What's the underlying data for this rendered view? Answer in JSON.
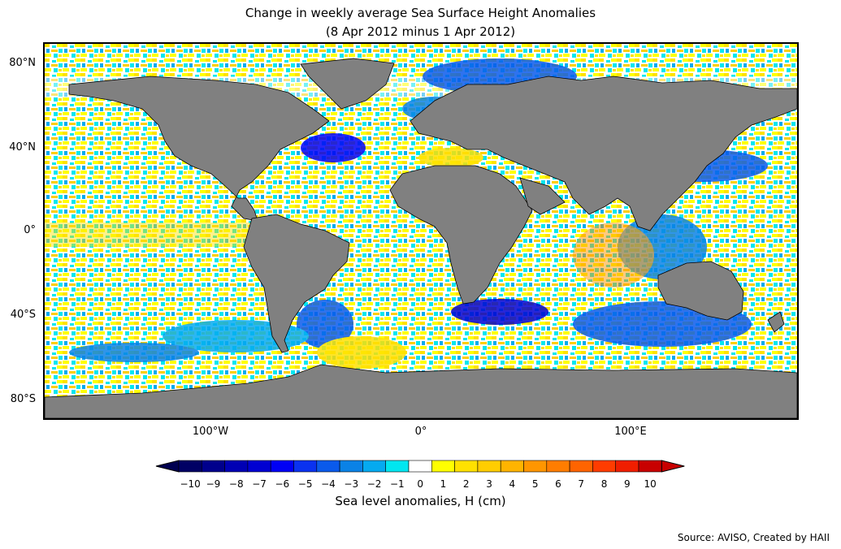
{
  "title": {
    "line1": "Change in weekly average Sea Surface Height Anomalies",
    "line2": "(8 Apr 2012 minus 1 Apr 2012)"
  },
  "map": {
    "land_color": "#808080",
    "coast_color": "#000000",
    "lat_labels": [
      "80°N",
      "40°N",
      "0°",
      "40°S",
      "80°S"
    ],
    "lon_labels": [
      "100°W",
      "0°",
      "100°E"
    ]
  },
  "colorbar": {
    "label": "Sea level anomalies, H (cm)",
    "ticks": [
      "−10",
      "−9",
      "−8",
      "−7",
      "−6",
      "−5",
      "−4",
      "−3",
      "−2",
      "−1",
      "0",
      "1",
      "2",
      "3",
      "4",
      "5",
      "6",
      "7",
      "8",
      "9",
      "10"
    ],
    "under_color": "#000050",
    "over_color": "#c80000",
    "colors": [
      "#000064",
      "#00008c",
      "#0000b4",
      "#0000d2",
      "#0000f5",
      "#0a32f0",
      "#0a5aeb",
      "#0a82e6",
      "#05aaf0",
      "#00e6f0",
      "#ffffff",
      "#ffff00",
      "#ffe100",
      "#ffcd00",
      "#ffb400",
      "#ff9600",
      "#ff7d00",
      "#ff6400",
      "#ff3c00",
      "#f01e00",
      "#c80000"
    ]
  },
  "source": "Source: AVISO, Created by HAII"
}
